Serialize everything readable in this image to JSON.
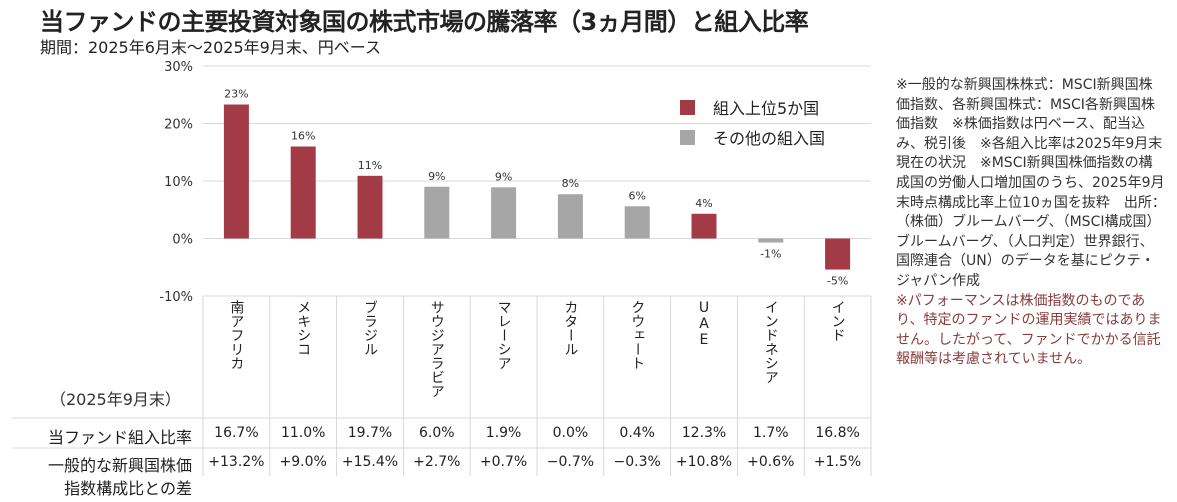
{
  "header": {
    "title": "当ファンドの主要投資対象国の株式市場の騰落率（3ヵ月間）と組入比率",
    "subtitle": "期間：2025年6月末～2025年9月末、円ベース"
  },
  "legend": [
    {
      "label": "組入上位5か国",
      "color": "#a23b45"
    },
    {
      "label": "その他の組入国",
      "color": "#a6a6a6"
    }
  ],
  "colors": {
    "top5": "#a23b45",
    "other": "#a6a6a6",
    "grid": "#d9d9d9"
  },
  "chart_data": {
    "type": "bar",
    "title": "当ファンドの主要投資対象国の株式市場の騰落率（3ヵ月間）と組入比率",
    "subtitle": "期間：2025年6月末～2025年9月末、円ベース",
    "xlabel": "",
    "ylabel": "",
    "categories": [
      "南アフリカ",
      "メキシコ",
      "ブラジル",
      "サウジアラビア",
      "マレーシア",
      "カタール",
      "クウェート",
      "UAE",
      "インドネシア",
      "インド"
    ],
    "values": [
      23.3,
      16.0,
      10.9,
      9.0,
      8.9,
      7.7,
      5.6,
      4.3,
      -0.7,
      -5.4
    ],
    "data_labels": [
      "23%",
      "16%",
      "11%",
      "9%",
      "9%",
      "8%",
      "6%",
      "4%",
      "-1%",
      "-5%"
    ],
    "groups": [
      "top5",
      "top5",
      "top5",
      "other",
      "other",
      "other",
      "other",
      "top5",
      "other",
      "top5"
    ],
    "ylim": [
      -10,
      30
    ],
    "yticks": [
      30,
      20,
      10,
      0,
      -10
    ],
    "ytick_labels": [
      "30%",
      "20%",
      "10%",
      "0%",
      "-10%"
    ],
    "grid": true,
    "legend_position": "top-right",
    "legend": [
      "組入上位5か国",
      "その他の組入国"
    ]
  },
  "table": {
    "as_of": "（2025年9月末）",
    "rows": [
      {
        "label": "当ファンド組入比率",
        "values": [
          "16.7%",
          "11.0%",
          "19.7%",
          "6.0%",
          "1.9%",
          "0.0%",
          "0.4%",
          "12.3%",
          "1.7%",
          "16.8%"
        ]
      },
      {
        "label_line1": "一般的な新興国株価",
        "label_line2": "指数構成比との差",
        "values": [
          "+13.2%",
          "+9.0%",
          "+15.4%",
          "+2.7%",
          "+0.7%",
          "−0.7%",
          "−0.3%",
          "+10.8%",
          "+0.6%",
          "+1.5%"
        ]
      }
    ]
  },
  "notes": {
    "main": "※一般的な新興国株株式：MSCI新興国株価指数、各新興国株式：MSCI各新興国株価指数　※株価指数は円ベース、配当込み、税引後　※各組入比率は2025年9月末現在の状況　※MSCI新興国株価指数の構成国の労働人口増加国のうち、2025年9月末時点構成比率上位10ヵ国を抜粋　出所：（株価）ブルームバーグ、（MSCI構成国）ブルームバーグ、（人口判定）世界銀行、国際連合（UN）のデータを基にピクテ・ジャパン作成",
    "warning": "※パフォーマンスは株価指数のものであり、特定のファンドの運用実績ではありません。したがって、ファンドでかかる信託報酬等は考慮されていません。"
  }
}
